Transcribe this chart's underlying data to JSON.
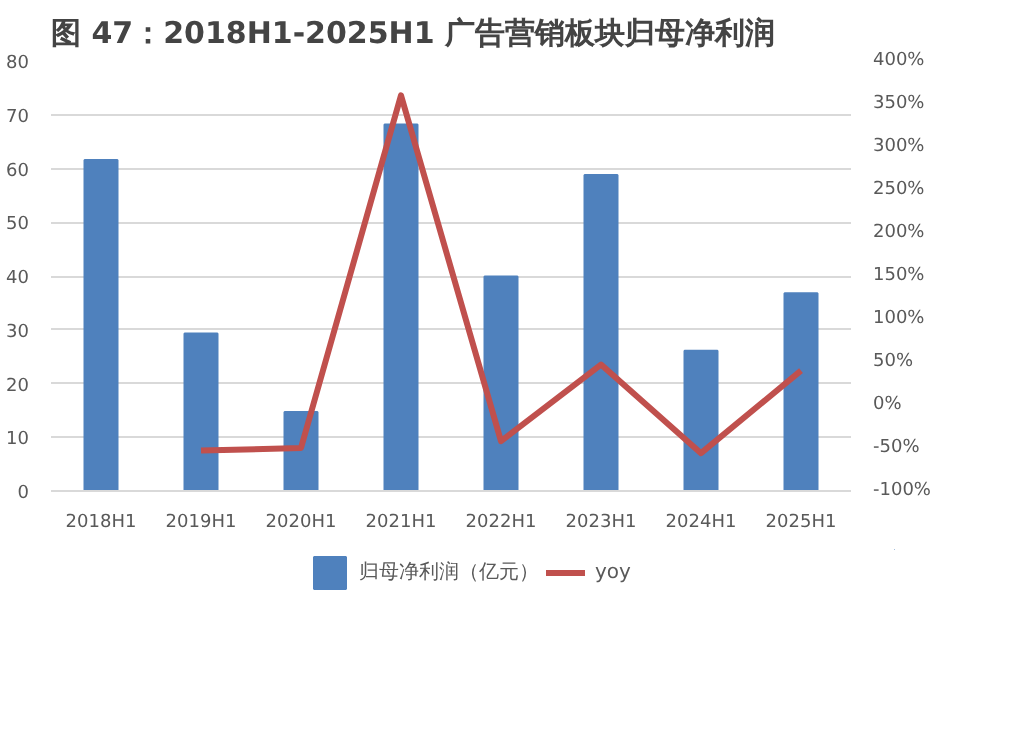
{
  "chart_data": {
    "type": "bar",
    "title": "图 47：2018H1-2025H1 广告营销板块归母净利润",
    "categories": [
      "2018H1",
      "2019H1",
      "2020H1",
      "2021H1",
      "2022H1",
      "2023H1",
      "2024H1",
      "2025H1"
    ],
    "series": [
      {
        "name": "归母净利润（亿元）",
        "color": "#4f81bd",
        "values": [
          61.6,
          29.3,
          14.7,
          68.2,
          39.9,
          58.8,
          26.1,
          36.8
        ]
      },
      {
        "name": "yoy",
        "type": "line",
        "axis": "y2",
        "color": "#c0504d",
        "values": [
          null,
          -53,
          -50,
          360,
          -42,
          47,
          -56,
          40
        ]
      }
    ],
    "ylim": [
      0,
      80
    ],
    "yticks": [
      0,
      10,
      20,
      30,
      40,
      50,
      60,
      70,
      80
    ],
    "y2lim": [
      -100,
      400
    ],
    "y2ticks": [
      {
        "value": -100,
        "label": "-100%"
      },
      {
        "value": -50,
        "label": "-50%"
      },
      {
        "value": 0,
        "label": "0%"
      },
      {
        "value": 50,
        "label": "50%"
      },
      {
        "value": 100,
        "label": "100%"
      },
      {
        "value": 150,
        "label": "150%"
      },
      {
        "value": 200,
        "label": "200%"
      },
      {
        "value": 250,
        "label": "250%"
      },
      {
        "value": 300,
        "label": "300%"
      },
      {
        "value": 350,
        "label": "350%"
      },
      {
        "value": 400,
        "label": "400%"
      }
    ],
    "grid": "y",
    "legend": "bottom",
    "marker": "none",
    "line_style": "solid"
  }
}
